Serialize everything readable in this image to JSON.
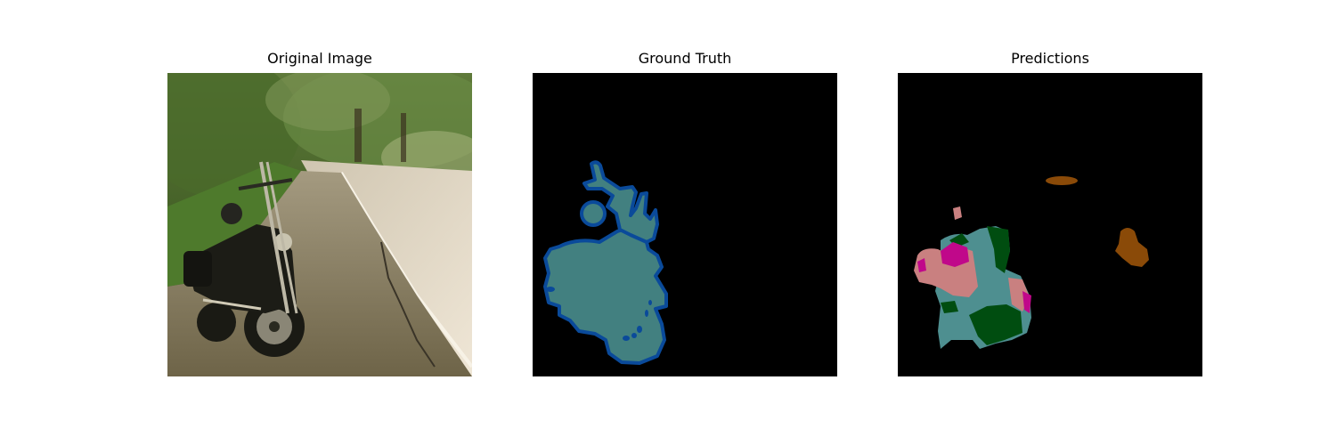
{
  "figure": {
    "panels": [
      {
        "title": "Original Image"
      },
      {
        "title": "Ground Truth"
      },
      {
        "title": "Predictions"
      }
    ]
  },
  "colors": {
    "background": "#000000",
    "gt_fill": "#428080",
    "gt_outline": "#0a4a9a",
    "pred_teal": "#4e8f90",
    "pred_dark_green": "#004d10",
    "pred_pink": "#c98080",
    "pred_magenta": "#c0088a",
    "pred_brown": "#8a4a08"
  }
}
